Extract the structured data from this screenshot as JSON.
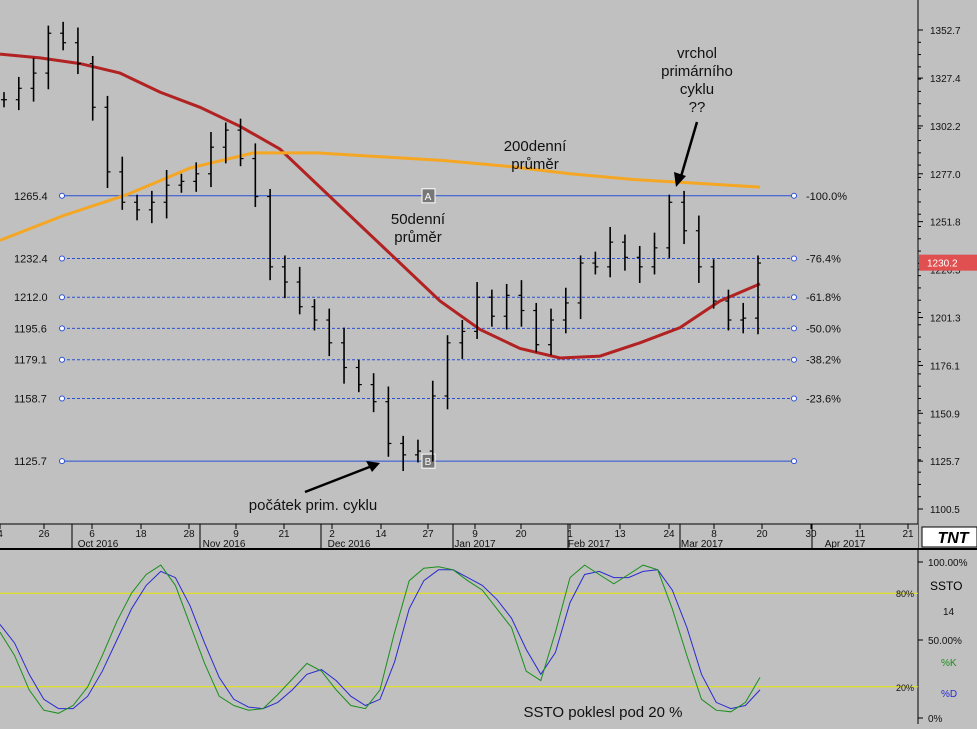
{
  "chart_data": [
    {
      "type": "line",
      "subtype": "ohlc",
      "panel": "price",
      "y_axis_ticks": [
        "1352.7",
        "1327.4",
        "1302.2",
        "1277.0",
        "1251.8",
        "1226.5",
        "1201.3",
        "1176.1",
        "1150.9",
        "1125.7",
        "1100.5"
      ],
      "ylim": [
        1095,
        1365
      ],
      "last_price_label": "1230.2",
      "last_price": 1230.2,
      "x_axis": {
        "day_ticks": [
          "4",
          "26",
          "6",
          "18",
          "28",
          "9",
          "21",
          "2",
          "14",
          "27",
          "9",
          "20",
          "1",
          "13",
          "24",
          "8",
          "20",
          "30",
          "11",
          "21"
        ],
        "month_labels": [
          "Oct 2016",
          "Nov 2016",
          "Dec 2016",
          "Jan 2017",
          "Feb 2017",
          "Mar 2017",
          "Apr 2017"
        ]
      },
      "fib_levels": [
        {
          "price": 1265.4,
          "left_label": "1265.4",
          "right_label": "-100.0%",
          "style": "solid"
        },
        {
          "price": 1232.4,
          "left_label": "1232.4",
          "right_label": "-76.4%",
          "style": "dashed"
        },
        {
          "price": 1212.0,
          "left_label": "1212.0",
          "right_label": "-61.8%",
          "style": "dashed"
        },
        {
          "price": 1195.6,
          "left_label": "1195.6",
          "right_label": "-50.0%",
          "style": "dashed"
        },
        {
          "price": 1179.1,
          "left_label": "1179.1",
          "right_label": "-38.2%",
          "style": "dashed"
        },
        {
          "price": 1158.7,
          "left_label": "1158.7",
          "right_label": "-23.6%",
          "style": "dashed"
        },
        {
          "price": 1125.7,
          "left_label": "1125.7",
          "right_label": "",
          "style": "solid"
        }
      ],
      "point_markers": [
        {
          "label": "A",
          "price": 1265.4
        },
        {
          "label": "B",
          "price": 1125.7
        }
      ],
      "annotations": {
        "ma50": "50denní\nprůměr",
        "ma200": "200denní\nprůměr",
        "top": "vrchol\nprimárního\ncyklu\n??",
        "bottom": "počátek prim. cyklu"
      },
      "colors": {
        "background": "#c0c0c0",
        "ma50": "#b22222",
        "ma200": "#f5a623",
        "fib": "#2a4fd6",
        "bars": "#000000",
        "price_tag": "#e05050"
      },
      "series": [
        {
          "label": "ma50",
          "color": "#b22222",
          "values": [
            1340,
            1338,
            1335,
            1330,
            1320,
            1312,
            1302,
            1290,
            1270,
            1250,
            1230,
            1210,
            1195,
            1185,
            1180,
            1181,
            1188,
            1196,
            1210,
            1219
          ]
        },
        {
          "label": "ma200",
          "color": "#f5a623",
          "values": [
            1242,
            1255,
            1266,
            1280,
            1288,
            1288,
            1286,
            1284,
            1281,
            1277,
            1274,
            1272,
            1270
          ]
        }
      ],
      "ohlc_closes": [
        1316,
        1322,
        1330,
        1351,
        1346,
        1335,
        1312,
        1278,
        1262,
        1258,
        1262,
        1271,
        1273,
        1277,
        1291,
        1300,
        1285,
        1265,
        1228,
        1220,
        1207,
        1200,
        1188,
        1175,
        1166,
        1157,
        1135,
        1129,
        1131,
        1160,
        1188,
        1194,
        1212,
        1202,
        1213,
        1205,
        1187,
        1200,
        1209,
        1230,
        1228,
        1241,
        1233,
        1228,
        1238,
        1262,
        1247,
        1228,
        1210,
        1200,
        1201,
        1230
      ]
    },
    {
      "type": "line",
      "panel": "stochastic",
      "title": "SSTO",
      "period": "14",
      "y_axis_ticks": [
        "100.00%",
        "50.00%",
        "0%"
      ],
      "ylim": [
        0,
        100
      ],
      "levels": [
        {
          "value": 80,
          "label": "80%"
        },
        {
          "value": 20,
          "label": "20%"
        }
      ],
      "legend": [
        "%K",
        "%D"
      ],
      "annotation": "SSTO poklesl pod 20 %",
      "colors": {
        "k": "#1a8f1a",
        "d": "#2a2ad0",
        "level": "#e8e800"
      },
      "series": [
        {
          "name": "%K",
          "color": "#1a8f1a",
          "values": [
            55,
            40,
            18,
            5,
            3,
            8,
            20,
            40,
            62,
            80,
            92,
            98,
            85,
            60,
            35,
            14,
            8,
            5,
            6,
            15,
            25,
            35,
            30,
            18,
            8,
            6,
            18,
            55,
            88,
            96,
            97,
            95,
            88,
            82,
            70,
            58,
            30,
            24,
            55,
            90,
            98,
            92,
            86,
            92,
            98,
            95,
            70,
            40,
            12,
            5,
            4,
            10,
            26
          ]
        },
        {
          "name": "%D",
          "color": "#2a2ad0",
          "values": [
            60,
            48,
            28,
            12,
            6,
            6,
            14,
            30,
            50,
            70,
            85,
            94,
            90,
            72,
            48,
            26,
            12,
            7,
            6,
            10,
            18,
            28,
            31,
            24,
            14,
            8,
            12,
            36,
            70,
            88,
            95,
            95,
            90,
            85,
            76,
            64,
            44,
            28,
            42,
            74,
            92,
            94,
            90,
            90,
            94,
            95,
            82,
            58,
            28,
            10,
            6,
            8,
            18
          ]
        }
      ]
    }
  ],
  "logo": "TNT"
}
